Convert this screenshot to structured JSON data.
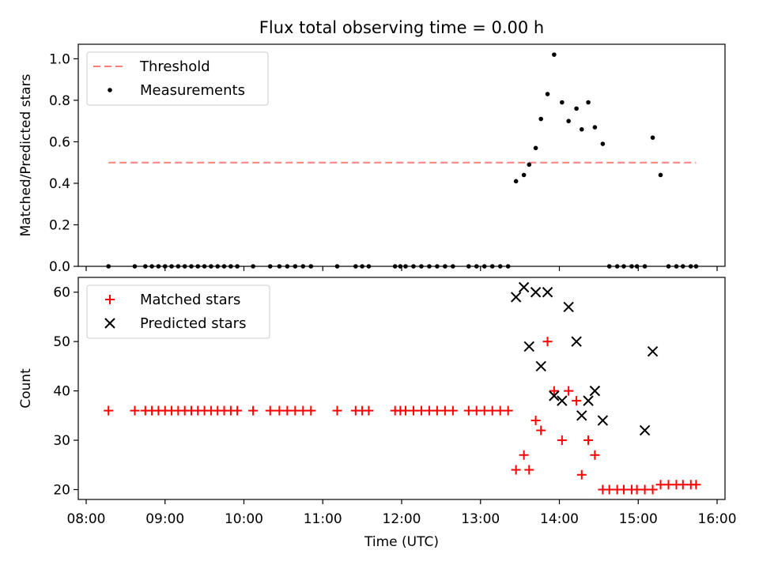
{
  "title": "Flux total observing time = 0.00 h",
  "xlabel": "Time (UTC)",
  "x_ticks": [
    "08:00",
    "09:00",
    "10:00",
    "11:00",
    "12:00",
    "13:00",
    "14:00",
    "15:00",
    "16:00"
  ],
  "x_tick_hours": [
    8,
    9,
    10,
    11,
    12,
    13,
    14,
    15,
    16
  ],
  "xlim_hours": [
    7.9,
    16.1
  ],
  "colors": {
    "threshold": "#ff7f7f",
    "measurements": "#000000",
    "matched": "#ff0000",
    "predicted": "#000000"
  },
  "chart_data": [
    {
      "type": "scatter",
      "ylabel": "Matched/Predicted stars",
      "ylim": [
        0,
        1.07
      ],
      "y_ticks": [
        "0.0",
        "0.2",
        "0.4",
        "0.6",
        "0.8",
        "1.0"
      ],
      "y_tick_values": [
        0,
        0.2,
        0.4,
        0.6,
        0.8,
        1.0
      ],
      "legend": {
        "placement": "top-left",
        "entries": [
          "Threshold",
          "Measurements"
        ]
      },
      "threshold": {
        "name": "Threshold",
        "y": 0.5,
        "x_start": "08:17",
        "x_end": "15:44",
        "style": "dashed"
      },
      "series": [
        {
          "name": "Measurements",
          "x": [
            "08:17",
            "08:37",
            "08:45",
            "08:50",
            "08:55",
            "09:00",
            "09:05",
            "09:10",
            "09:15",
            "09:20",
            "09:25",
            "09:30",
            "09:35",
            "09:40",
            "09:45",
            "09:50",
            "09:55",
            "10:07",
            "10:20",
            "10:27",
            "10:33",
            "10:39",
            "10:45",
            "10:51",
            "11:11",
            "11:25",
            "11:30",
            "11:35",
            "11:55",
            "11:59",
            "12:03",
            "12:09",
            "12:15",
            "12:21",
            "12:27",
            "12:33",
            "12:39",
            "12:51",
            "12:57",
            "13:03",
            "13:09",
            "13:15",
            "13:21",
            "13:27",
            "13:33",
            "13:37",
            "13:42",
            "13:46",
            "13:51",
            "13:56",
            "14:02",
            "14:07",
            "14:13",
            "14:17",
            "14:22",
            "14:27",
            "14:33",
            "14:38",
            "14:44",
            "14:49",
            "14:55",
            "14:59",
            "15:05",
            "15:11",
            "15:17",
            "15:23",
            "15:29",
            "15:34",
            "15:40",
            "15:44"
          ],
          "values": [
            0,
            0,
            0,
            0,
            0,
            0,
            0,
            0,
            0,
            0,
            0,
            0,
            0,
            0,
            0,
            0,
            0,
            0,
            0,
            0,
            0,
            0,
            0,
            0,
            0,
            0,
            0,
            0,
            0,
            0,
            0,
            0,
            0,
            0,
            0,
            0,
            0,
            0,
            0,
            0,
            0,
            0,
            0,
            0.41,
            0.44,
            0.49,
            0.57,
            0.71,
            0.83,
            1.02,
            0.79,
            0.7,
            0.76,
            0.66,
            0.79,
            0.67,
            0.59,
            0,
            0,
            0,
            0,
            0,
            0,
            0.62,
            0.44,
            0,
            0,
            0,
            0,
            0
          ]
        }
      ]
    },
    {
      "type": "scatter",
      "ylabel": "Count",
      "ylim": [
        18,
        63
      ],
      "y_ticks": [
        "20",
        "30",
        "40",
        "50",
        "60"
      ],
      "y_tick_values": [
        20,
        30,
        40,
        50,
        60
      ],
      "legend": {
        "placement": "top-left",
        "entries": [
          "Matched stars",
          "Predicted stars"
        ]
      },
      "series": [
        {
          "name": "Matched stars",
          "marker": "+",
          "x": [
            "08:17",
            "08:37",
            "08:45",
            "08:50",
            "08:55",
            "09:00",
            "09:05",
            "09:10",
            "09:15",
            "09:20",
            "09:25",
            "09:30",
            "09:35",
            "09:40",
            "09:45",
            "09:50",
            "09:55",
            "10:07",
            "10:20",
            "10:27",
            "10:33",
            "10:39",
            "10:45",
            "10:51",
            "11:11",
            "11:25",
            "11:30",
            "11:35",
            "11:55",
            "11:59",
            "12:03",
            "12:09",
            "12:15",
            "12:21",
            "12:27",
            "12:33",
            "12:39",
            "12:51",
            "12:57",
            "13:03",
            "13:09",
            "13:15",
            "13:21",
            "13:27",
            "13:33",
            "13:37",
            "13:42",
            "13:46",
            "13:51",
            "13:56",
            "14:02",
            "14:07",
            "14:13",
            "14:17",
            "14:22",
            "14:27",
            "14:33",
            "14:38",
            "14:44",
            "14:49",
            "14:55",
            "14:59",
            "15:05",
            "15:11",
            "15:17",
            "15:23",
            "15:29",
            "15:34",
            "15:40",
            "15:44"
          ],
          "values": [
            36,
            36,
            36,
            36,
            36,
            36,
            36,
            36,
            36,
            36,
            36,
            36,
            36,
            36,
            36,
            36,
            36,
            36,
            36,
            36,
            36,
            36,
            36,
            36,
            36,
            36,
            36,
            36,
            36,
            36,
            36,
            36,
            36,
            36,
            36,
            36,
            36,
            36,
            36,
            36,
            36,
            36,
            36,
            24,
            27,
            24,
            34,
            32,
            50,
            40,
            30,
            40,
            38,
            23,
            30,
            27,
            20,
            20,
            20,
            20,
            20,
            20,
            20,
            20,
            21,
            21,
            21,
            21,
            21,
            21
          ]
        },
        {
          "name": "Predicted stars",
          "marker": "x",
          "x": [
            "13:27",
            "13:33",
            "13:37",
            "13:42",
            "13:46",
            "13:51",
            "13:56",
            "14:02",
            "14:07",
            "14:13",
            "14:17",
            "14:22",
            "14:27",
            "14:33",
            "15:05",
            "15:11"
          ],
          "values": [
            59,
            61,
            49,
            60,
            45,
            60,
            39,
            38,
            57,
            50,
            35,
            38,
            40,
            34,
            32,
            48
          ]
        }
      ]
    }
  ]
}
